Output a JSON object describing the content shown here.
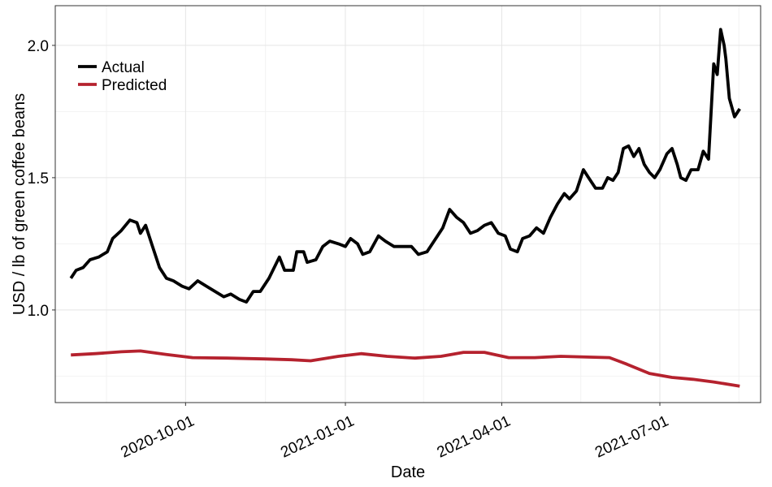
{
  "chart_data": {
    "type": "line",
    "title": "",
    "xlabel": "Date",
    "ylabel": "USD / lb of green coffee beans",
    "xlim": [
      "2020-07-18",
      "2021-08-28"
    ],
    "ylim": [
      0.65,
      2.15
    ],
    "x_ticks": [
      "2020-10-01",
      "2021-01-01",
      "2021-04-01",
      "2021-07-01"
    ],
    "y_ticks": [
      1.0,
      1.5,
      2.0
    ],
    "y_tick_labels": [
      "1.0",
      "1.5",
      "2.0"
    ],
    "grid": true,
    "legend_position": "top-left",
    "series": [
      {
        "name": "Actual",
        "color": "#000000",
        "points": [
          [
            "2020-07-27",
            1.12
          ],
          [
            "2020-07-30",
            1.15
          ],
          [
            "2020-08-03",
            1.16
          ],
          [
            "2020-08-07",
            1.19
          ],
          [
            "2020-08-12",
            1.2
          ],
          [
            "2020-08-17",
            1.22
          ],
          [
            "2020-08-20",
            1.27
          ],
          [
            "2020-08-25",
            1.3
          ],
          [
            "2020-08-30",
            1.34
          ],
          [
            "2020-09-03",
            1.33
          ],
          [
            "2020-09-05",
            1.29
          ],
          [
            "2020-09-08",
            1.32
          ],
          [
            "2020-09-12",
            1.24
          ],
          [
            "2020-09-16",
            1.16
          ],
          [
            "2020-09-20",
            1.12
          ],
          [
            "2020-09-24",
            1.11
          ],
          [
            "2020-09-29",
            1.09
          ],
          [
            "2020-10-03",
            1.08
          ],
          [
            "2020-10-08",
            1.11
          ],
          [
            "2020-10-13",
            1.09
          ],
          [
            "2020-10-18",
            1.07
          ],
          [
            "2020-10-23",
            1.05
          ],
          [
            "2020-10-27",
            1.06
          ],
          [
            "2020-11-01",
            1.04
          ],
          [
            "2020-11-05",
            1.03
          ],
          [
            "2020-11-09",
            1.07
          ],
          [
            "2020-11-13",
            1.07
          ],
          [
            "2020-11-18",
            1.12
          ],
          [
            "2020-11-24",
            1.2
          ],
          [
            "2020-11-27",
            1.15
          ],
          [
            "2020-12-02",
            1.15
          ],
          [
            "2020-12-04",
            1.22
          ],
          [
            "2020-12-08",
            1.22
          ],
          [
            "2020-12-10",
            1.18
          ],
          [
            "2020-12-15",
            1.19
          ],
          [
            "2020-12-19",
            1.24
          ],
          [
            "2020-12-23",
            1.26
          ],
          [
            "2020-12-28",
            1.25
          ],
          [
            "2021-01-01",
            1.24
          ],
          [
            "2021-01-04",
            1.27
          ],
          [
            "2021-01-08",
            1.25
          ],
          [
            "2021-01-11",
            1.21
          ],
          [
            "2021-01-15",
            1.22
          ],
          [
            "2021-01-20",
            1.28
          ],
          [
            "2021-01-24",
            1.26
          ],
          [
            "2021-01-29",
            1.24
          ],
          [
            "2021-02-03",
            1.24
          ],
          [
            "2021-02-08",
            1.24
          ],
          [
            "2021-02-12",
            1.21
          ],
          [
            "2021-02-17",
            1.22
          ],
          [
            "2021-02-22",
            1.27
          ],
          [
            "2021-02-26",
            1.31
          ],
          [
            "2021-03-02",
            1.38
          ],
          [
            "2021-03-06",
            1.35
          ],
          [
            "2021-03-10",
            1.33
          ],
          [
            "2021-03-14",
            1.29
          ],
          [
            "2021-03-18",
            1.3
          ],
          [
            "2021-03-22",
            1.32
          ],
          [
            "2021-03-26",
            1.33
          ],
          [
            "2021-03-30",
            1.29
          ],
          [
            "2021-04-03",
            1.28
          ],
          [
            "2021-04-06",
            1.23
          ],
          [
            "2021-04-10",
            1.22
          ],
          [
            "2021-04-13",
            1.27
          ],
          [
            "2021-04-17",
            1.28
          ],
          [
            "2021-04-21",
            1.31
          ],
          [
            "2021-04-25",
            1.29
          ],
          [
            "2021-04-29",
            1.35
          ],
          [
            "2021-05-03",
            1.4
          ],
          [
            "2021-05-07",
            1.44
          ],
          [
            "2021-05-10",
            1.42
          ],
          [
            "2021-05-14",
            1.45
          ],
          [
            "2021-05-18",
            1.53
          ],
          [
            "2021-05-21",
            1.5
          ],
          [
            "2021-05-25",
            1.46
          ],
          [
            "2021-05-29",
            1.46
          ],
          [
            "2021-06-01",
            1.5
          ],
          [
            "2021-06-04",
            1.49
          ],
          [
            "2021-06-07",
            1.52
          ],
          [
            "2021-06-10",
            1.61
          ],
          [
            "2021-06-13",
            1.62
          ],
          [
            "2021-06-16",
            1.58
          ],
          [
            "2021-06-19",
            1.61
          ],
          [
            "2021-06-22",
            1.55
          ],
          [
            "2021-06-25",
            1.52
          ],
          [
            "2021-06-28",
            1.5
          ],
          [
            "2021-07-01",
            1.53
          ],
          [
            "2021-07-05",
            1.59
          ],
          [
            "2021-07-08",
            1.61
          ],
          [
            "2021-07-11",
            1.55
          ],
          [
            "2021-07-13",
            1.5
          ],
          [
            "2021-07-16",
            1.49
          ],
          [
            "2021-07-19",
            1.53
          ],
          [
            "2021-07-23",
            1.53
          ],
          [
            "2021-07-26",
            1.6
          ],
          [
            "2021-07-29",
            1.57
          ],
          [
            "2021-08-01",
            1.93
          ],
          [
            "2021-08-03",
            1.89
          ],
          [
            "2021-08-05",
            2.06
          ],
          [
            "2021-08-07",
            2.0
          ],
          [
            "2021-08-08",
            1.95
          ],
          [
            "2021-08-10",
            1.8
          ],
          [
            "2021-08-13",
            1.73
          ],
          [
            "2021-08-16",
            1.76
          ]
        ]
      },
      {
        "name": "Predicted",
        "color": "#b5222e",
        "points": [
          [
            "2020-07-27",
            0.83
          ],
          [
            "2020-08-10",
            0.835
          ],
          [
            "2020-08-25",
            0.842
          ],
          [
            "2020-09-05",
            0.845
          ],
          [
            "2020-09-20",
            0.832
          ],
          [
            "2020-10-05",
            0.82
          ],
          [
            "2020-10-25",
            0.818
          ],
          [
            "2020-11-15",
            0.815
          ],
          [
            "2020-12-01",
            0.812
          ],
          [
            "2020-12-12",
            0.808
          ],
          [
            "2020-12-28",
            0.825
          ],
          [
            "2021-01-10",
            0.835
          ],
          [
            "2021-01-25",
            0.825
          ],
          [
            "2021-02-10",
            0.818
          ],
          [
            "2021-02-25",
            0.825
          ],
          [
            "2021-03-10",
            0.84
          ],
          [
            "2021-03-22",
            0.84
          ],
          [
            "2021-04-05",
            0.82
          ],
          [
            "2021-04-20",
            0.82
          ],
          [
            "2021-05-05",
            0.825
          ],
          [
            "2021-05-20",
            0.822
          ],
          [
            "2021-06-02",
            0.82
          ],
          [
            "2021-06-12",
            0.795
          ],
          [
            "2021-06-25",
            0.76
          ],
          [
            "2021-07-08",
            0.745
          ],
          [
            "2021-07-20",
            0.738
          ],
          [
            "2021-08-01",
            0.728
          ],
          [
            "2021-08-16",
            0.712
          ]
        ]
      }
    ]
  }
}
